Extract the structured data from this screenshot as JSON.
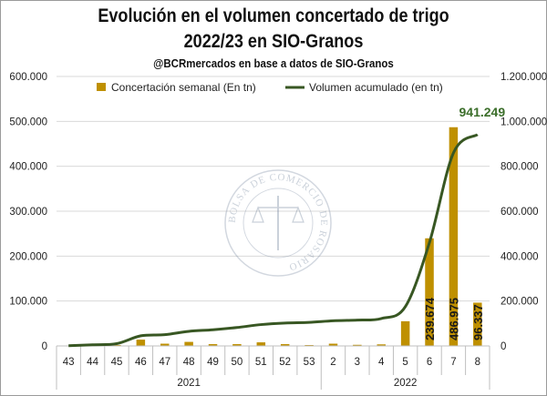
{
  "title_line1": "Evolución en el volumen concertado de trigo",
  "title_line2": "2022/23 en SIO-Granos",
  "subtitle": "@BCRmercados en base a datos de SIO-Granos",
  "watermark_text": "BOLSA DE COMERCIO DE ROSARIO",
  "colors": {
    "bar": "#bf9000",
    "line": "#385723",
    "grid": "#d9d9d9",
    "axis": "#bfbfbf"
  },
  "chart_data": {
    "type": "bar+line",
    "categories": [
      "43",
      "44",
      "45",
      "46",
      "47",
      "48",
      "49",
      "50",
      "51",
      "52",
      "53",
      "2",
      "3",
      "4",
      "5",
      "6",
      "7",
      "8"
    ],
    "year_groups": [
      {
        "label": "2021",
        "from": 0,
        "to": 10
      },
      {
        "label": "2022",
        "from": 11,
        "to": 17
      }
    ],
    "series": [
      {
        "name": "Concertación semanal (En tn)",
        "kind": "bar",
        "axis": "left",
        "values": [
          500,
          1500,
          2000,
          14000,
          5000,
          9000,
          4000,
          4000,
          8000,
          4000,
          2000,
          5000,
          2500,
          3500,
          55000,
          239674,
          486975,
          96337
        ]
      },
      {
        "name": "Volumen acumulado (en tn)",
        "kind": "line",
        "axis": "right",
        "values": [
          1000,
          5000,
          10000,
          45000,
          50000,
          65000,
          72000,
          82000,
          95000,
          102000,
          105000,
          112000,
          115000,
          122000,
          175000,
          460000,
          860000,
          941249
        ]
      }
    ],
    "left_axis": {
      "min": 0,
      "max": 600000,
      "ticks": [
        "0",
        "100.000",
        "200.000",
        "300.000",
        "400.000",
        "500.000",
        "600.000"
      ]
    },
    "right_axis": {
      "min": 0,
      "max": 1200000,
      "ticks": [
        "0",
        "200.000",
        "400.000",
        "600.000",
        "800.000",
        "1.000.000",
        "1.200.000"
      ]
    },
    "data_labels": [
      {
        "index": 15,
        "text": "239.674"
      },
      {
        "index": 16,
        "text": "486.975"
      },
      {
        "index": 17,
        "text": "96.337"
      }
    ],
    "final_label": "941.249",
    "legend_position": "top"
  }
}
